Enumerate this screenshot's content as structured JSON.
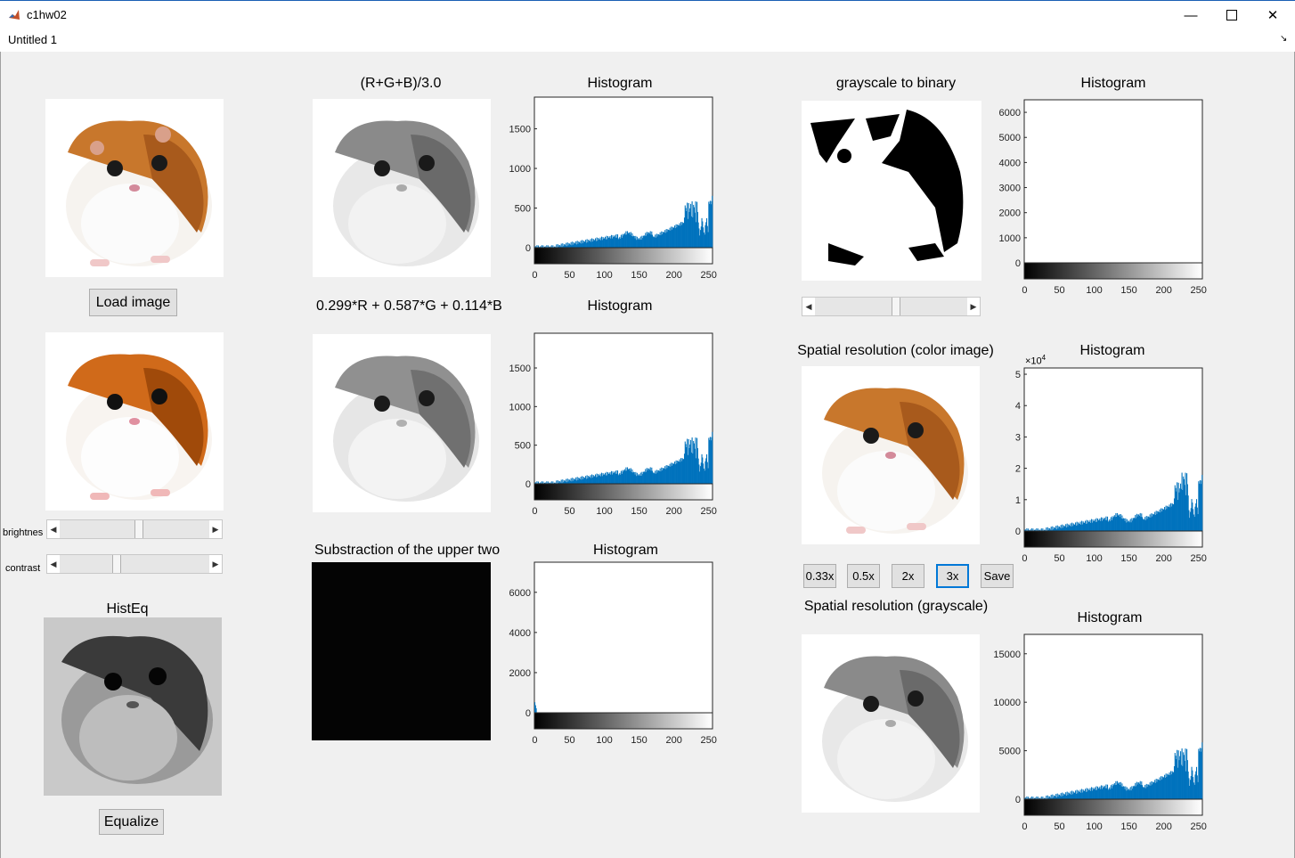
{
  "window": {
    "title": "c1hw02"
  },
  "menu": {
    "item": "Untitled 1"
  },
  "colors": {
    "hist_fill": "#0072bd",
    "button_bg": "#e1e1e1",
    "focus": "#0078d7",
    "bg": "#f0f0f0"
  },
  "left": {
    "load_button": "Load image",
    "brightness_label": "brightnes",
    "contrast_label": "contrast",
    "brightness_value": 0.5,
    "contrast_value": 0.35,
    "histeq_label": "HistEq",
    "equalize_button": "Equalize"
  },
  "middle": {
    "avg_title": "(R+G+B)/3.0",
    "weighted_title": "0.299*R + 0.587*G + 0.114*B",
    "subtraction_title": "Substraction of the upper two",
    "hist1_title": "Histogram",
    "hist2_title": "Histogram",
    "hist3_title": "Histogram"
  },
  "right": {
    "binary_title": "grayscale to binary",
    "binary_slider_value": 0.5,
    "hist_binary_title": "Histogram",
    "spatial_color_title": "Spatial resolution (color image)",
    "hist_spatial_color_title": "Histogram",
    "spatial_gray_title": "Spatial resolution (grayscale)",
    "hist_spatial_gray_title": "Histogram",
    "buttons": [
      "0.33x",
      "0.5x",
      "2x",
      "3x",
      "Save"
    ],
    "selected_button": "3x",
    "exponent_label": "×10",
    "exponent_power": "4"
  },
  "charts": {
    "hist1": {
      "yticks": [
        "0",
        "500",
        "1000",
        "1500"
      ],
      "xticks": [
        "0",
        "50",
        "100",
        "150",
        "200",
        "250"
      ],
      "ylim": [
        0,
        1900
      ],
      "peak_shape": "gray"
    },
    "hist2": {
      "yticks": [
        "0",
        "500",
        "1000",
        "1500"
      ],
      "xticks": [
        "0",
        "50",
        "100",
        "150",
        "200",
        "250"
      ],
      "ylim": [
        0,
        1950
      ],
      "peak_shape": "gray"
    },
    "hist3": {
      "yticks": [
        "0",
        "2000",
        "4000",
        "6000"
      ],
      "xticks": [
        "0",
        "50",
        "100",
        "150",
        "200",
        "250"
      ],
      "ylim": [
        0,
        7500
      ],
      "peak_shape": "spike0"
    },
    "hist_binary": {
      "yticks": [
        "0",
        "1000",
        "2000",
        "3000",
        "4000",
        "5000",
        "6000"
      ],
      "xticks": [
        "0",
        "50",
        "100",
        "150",
        "200",
        "250"
      ],
      "ylim": [
        0,
        6500
      ],
      "peak_shape": "none"
    },
    "hist_spatial_color": {
      "yticks": [
        "0",
        "1",
        "2",
        "3",
        "4",
        "5"
      ],
      "xticks": [
        "0",
        "50",
        "100",
        "150",
        "200",
        "250"
      ],
      "ylim": [
        0,
        5.2
      ],
      "peak_shape": "color"
    },
    "hist_spatial_gray": {
      "yticks": [
        "0",
        "5000",
        "10000",
        "15000"
      ],
      "xticks": [
        "0",
        "50",
        "100",
        "150",
        "200",
        "250"
      ],
      "ylim": [
        0,
        17000
      ],
      "peak_shape": "gray"
    }
  }
}
